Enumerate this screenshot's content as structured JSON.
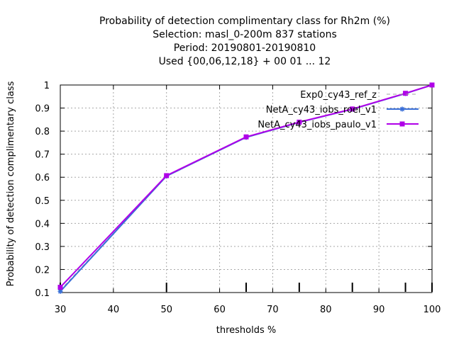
{
  "chart_data": {
    "type": "line",
    "title": [
      "Probability of detection complimentary class  for Rh2m (%)",
      "Selection: masl_0-200m    837 stations",
      "Period: 20190801-20190810",
      "Used {00,06,12,18} + 00 01 ... 12"
    ],
    "xlabel": "thresholds %",
    "ylabel": "Probability of detection complimentary class",
    "xlim": [
      30,
      100
    ],
    "ylim": [
      0.1,
      1.0
    ],
    "xticks": [
      30,
      40,
      50,
      60,
      70,
      80,
      90,
      100
    ],
    "yticks": [
      0.1,
      0.2,
      0.3,
      0.4,
      0.5,
      0.6,
      0.7,
      0.8,
      0.9,
      1.0
    ],
    "ytick_labels": [
      "0.1",
      "0.2",
      "0.3",
      "0.4",
      "0.5",
      "0.6",
      "0.7",
      "0.8",
      "0.9",
      "1"
    ],
    "grid": true,
    "legend_position": "top-right",
    "series": [
      {
        "name": "Exp0_cy43_ref_z",
        "color": "#a0a0a0",
        "style": "dashed",
        "marker": "none",
        "x": [
          30,
          50,
          65,
          75,
          85,
          95,
          100
        ],
        "y": [
          0.11,
          0.605,
          0.772,
          0.838,
          0.895,
          0.963,
          1.0
        ]
      },
      {
        "name": "NetA_cy43_iobs_roel_v1",
        "color": "#3a6fd8",
        "style": "solid",
        "marker": "star",
        "x": [
          30,
          50,
          65,
          75,
          85,
          95,
          100
        ],
        "y": [
          0.105,
          0.605,
          0.773,
          0.838,
          0.895,
          0.963,
          1.0
        ]
      },
      {
        "name": "NetA_cy43_iobs_paulo_v1",
        "color": "#b000e8",
        "style": "solid",
        "marker": "box",
        "x": [
          30,
          50,
          65,
          75,
          85,
          95,
          100
        ],
        "y": [
          0.123,
          0.607,
          0.775,
          0.839,
          0.896,
          0.964,
          1.0
        ]
      }
    ],
    "rug_ticks_x": [
      30,
      50,
      65,
      75,
      85,
      95,
      100
    ]
  }
}
